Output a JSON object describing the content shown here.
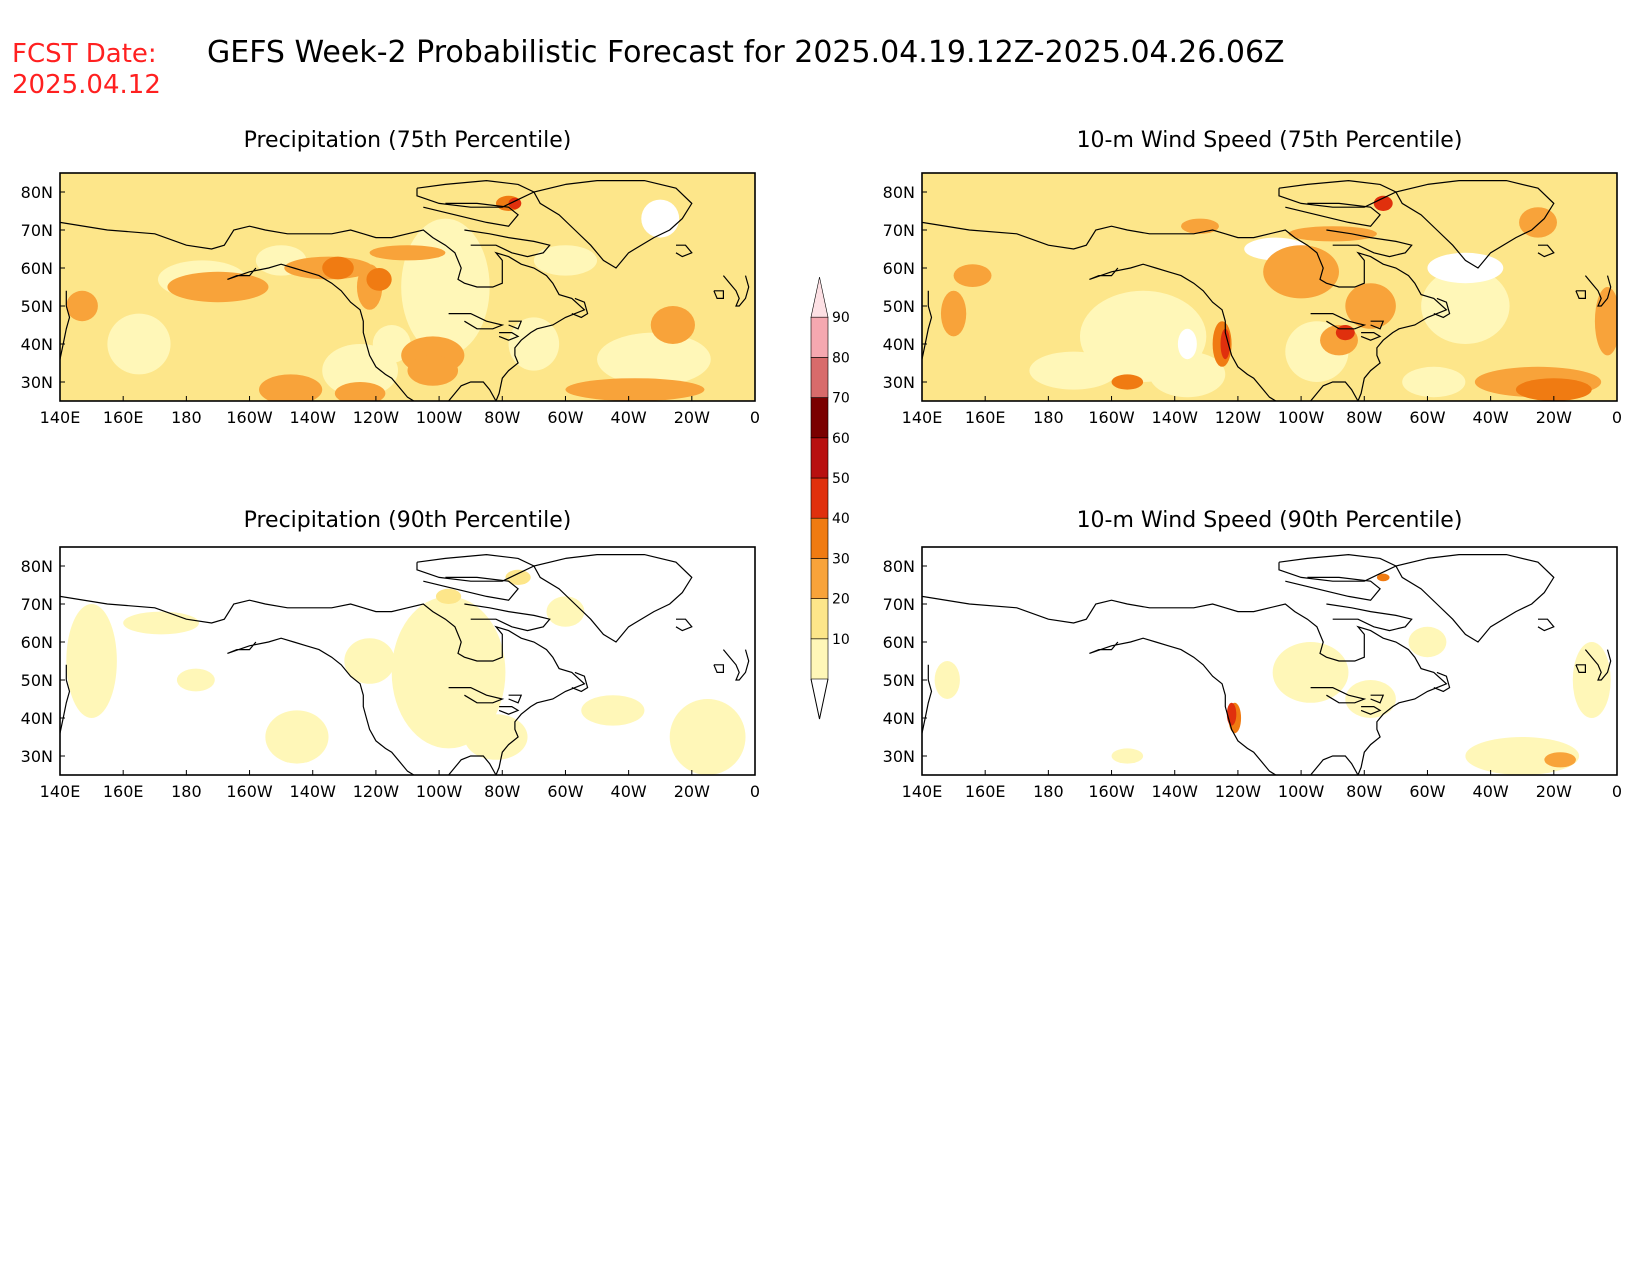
{
  "header": {
    "fcst_label": "FCST Date:",
    "fcst_date": "2025.04.12",
    "title": "GEFS Week-2 Probabilistic Forecast for 2025.04.19.12Z-2025.04.26.06Z"
  },
  "colors": {
    "header_red": "#ff2020",
    "land_outline": "#000000"
  },
  "axes": {
    "lon_labels": [
      "140E",
      "160E",
      "180",
      "160W",
      "140W",
      "120W",
      "100W",
      "80W",
      "60W",
      "40W",
      "20W",
      "0"
    ],
    "lat_labels": [
      "80N",
      "70N",
      "60N",
      "50N",
      "40N",
      "30N"
    ]
  },
  "colorbar": {
    "labels": [
      "10",
      "20",
      "30",
      "40",
      "50",
      "60",
      "70",
      "80",
      "90"
    ],
    "colors": [
      "#fff7b8",
      "#fde68a",
      "#f8a33a",
      "#f07b12",
      "#e0300d",
      "#b81010",
      "#7a0000",
      "#d86b6b",
      "#f5a8b0",
      "#fde0e4"
    ]
  },
  "panels": [
    {
      "id": "precip-75",
      "title": "Precipitation (75th Percentile)",
      "variable": "precipitation",
      "percentile": "75th",
      "intensity": "high"
    },
    {
      "id": "wind-75",
      "title": "10-m Wind Speed (75th Percentile)",
      "variable": "wind",
      "percentile": "75th",
      "intensity": "high"
    },
    {
      "id": "precip-90",
      "title": "Precipitation (90th Percentile)",
      "variable": "precipitation",
      "percentile": "90th",
      "intensity": "low"
    },
    {
      "id": "wind-90",
      "title": "10-m Wind Speed (90th Percentile)",
      "variable": "wind",
      "percentile": "90th",
      "intensity": "low"
    }
  ]
}
